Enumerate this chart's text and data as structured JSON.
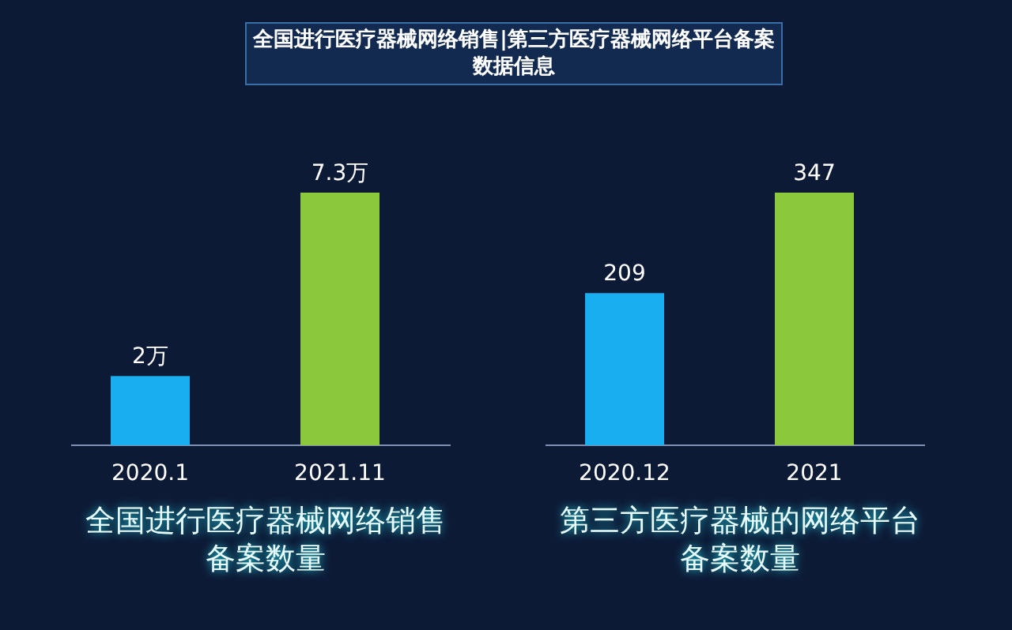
{
  "chart_data": [
    {
      "type": "bar",
      "title": "全国进行医疗器械网络销售|第三方医疗器械网络平台备案数据信息",
      "categories": [
        "2020.1",
        "2021.11"
      ],
      "values": [
        2,
        7.3
      ],
      "colors": [
        "#19aef0",
        "#8cc83c"
      ],
      "value_labels": [
        "2万",
        "7.3万"
      ],
      "xlabel": "全国进行医疗器械网络销售备案数量"
    },
    {
      "type": "bar",
      "categories": [
        "2020.12",
        "2021"
      ],
      "values": [
        209,
        347
      ],
      "colors": [
        "#19aef0",
        "#8cc83c"
      ],
      "data_labels": true,
      "xlabel": "第三方医疗器械的网络平台备案数量"
    }
  ]
}
